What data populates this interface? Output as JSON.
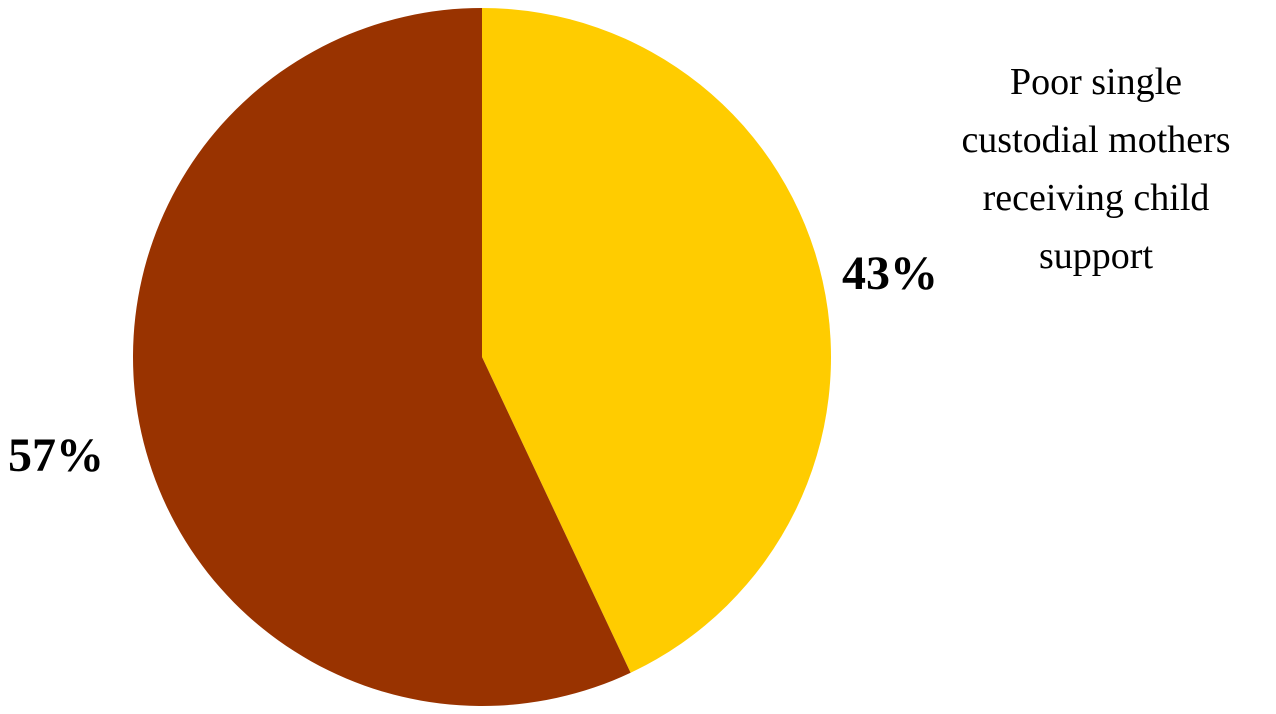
{
  "chart_data": {
    "type": "pie",
    "slices": [
      {
        "value": 43,
        "label": "43%",
        "color": "#FFCC00"
      },
      {
        "value": 57,
        "label": "57%",
        "color": "#993300"
      }
    ],
    "annotation_lines": [
      "Poor single",
      "custodial mothers",
      "receiving child",
      "support"
    ],
    "start_angle_deg": 0,
    "direction": "clockwise",
    "legend": "none"
  }
}
